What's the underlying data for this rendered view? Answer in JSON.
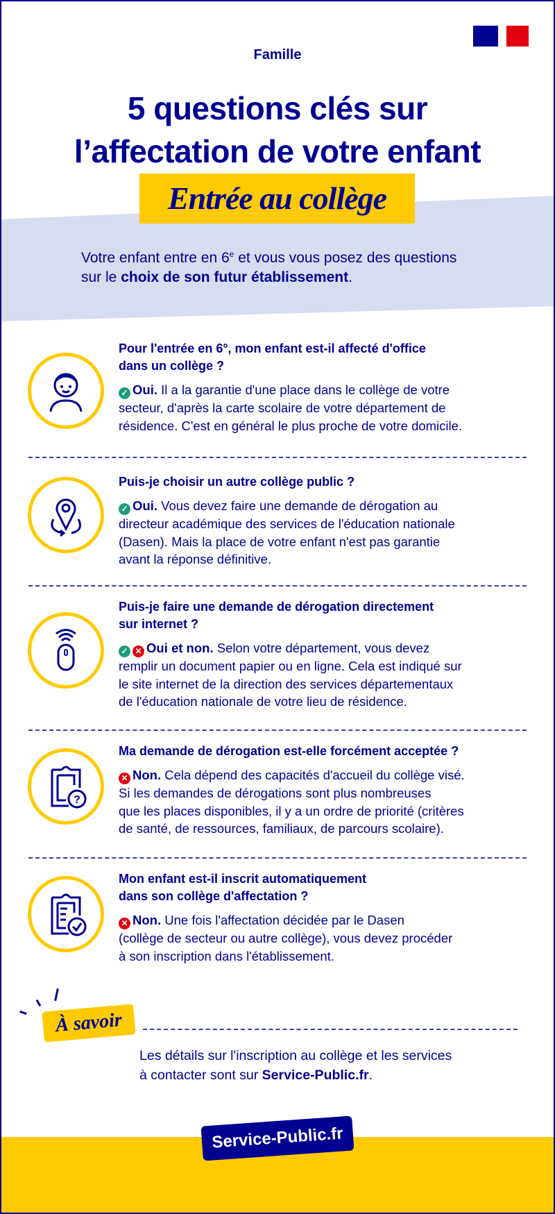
{
  "header": {
    "category": "Famille",
    "title_lines": [
      "5 questions clés sur",
      "l’affectation de votre enfant"
    ],
    "banner": "Entrée au collège",
    "logo": "republique-francaise-flag-logo"
  },
  "intro": {
    "line1_a": "Votre enfant entre en 6",
    "line1_sup": "e",
    "line1_b": " et vous vous posez des questions",
    "line2_a": "sur le ",
    "line2_bold": "choix de son futur établissement",
    "line2_c": "."
  },
  "questions": [
    {
      "icon": "child-avatar-icon",
      "title_lines": [
        "Pour l'entrée en 6°, mon enfant est-il affecté d'office",
        "dans un collège ?"
      ],
      "answer_marks": [
        "check"
      ],
      "answer_label": "Oui.",
      "answer_first": " Il a la garantie d'une place dans le collège de votre",
      "answer_lines": [
        "secteur, d'après la carte scolaire de votre département de",
        "résidence. C'est en général le plus proche de votre domicile."
      ]
    },
    {
      "icon": "location-pin-icon",
      "title_lines": [
        "Puis-je choisir un autre collège public ?"
      ],
      "answer_marks": [
        "check"
      ],
      "answer_label": "Oui.",
      "answer_first": " Vous devez faire une demande de dérogation au",
      "answer_lines": [
        "directeur académique des services de l'éducation nationale",
        "(Dasen). Mais la place de votre enfant n'est pas garantie",
        "avant la réponse définitive."
      ]
    },
    {
      "icon": "wireless-mouse-icon",
      "title_lines": [
        "Puis-je faire une demande de dérogation directement",
        "sur internet ?"
      ],
      "answer_marks": [
        "check",
        "cross"
      ],
      "answer_label": "Oui et non.",
      "answer_first": " Selon votre département, vous devez",
      "answer_lines": [
        "remplir un document papier ou en ligne. Cela est indiqué sur",
        "le site internet de la direction des services départementaux",
        "de l'éducation nationale de votre lieu de résidence."
      ]
    },
    {
      "icon": "clipboard-question-icon",
      "title_lines": [
        "Ma demande de dérogation est-elle forcément acceptée ?"
      ],
      "answer_marks": [
        "cross"
      ],
      "answer_label": "Non.",
      "answer_first": " Cela dépend des capacités d'accueil du collège visé.",
      "answer_lines": [
        "Si les demandes de dérogations sont plus nombreuses",
        "que les places disponibles, il y a un ordre de priorité (critères",
        "de santé, de ressources, familiaux, de parcours scolaire)."
      ]
    },
    {
      "icon": "clipboard-check-icon",
      "title_lines": [
        "Mon enfant est-il inscrit automatiquement",
        "dans son collège d'affectation ?"
      ],
      "answer_marks": [
        "cross"
      ],
      "answer_label": "Non.",
      "answer_first": " Une fois l'affectation décidée par le Dasen",
      "answer_lines": [
        "(collège de secteur ou autre collège), vous devez procéder",
        "à son inscription dans l'établissement."
      ]
    }
  ],
  "a_savoir": {
    "label": "À savoir",
    "line1": "Les détails sur l'inscription au collège et les services",
    "line2_a": "à contacter sont sur ",
    "line2_bold": "Service-Public.fr",
    "line2_c": "."
  },
  "footer": {
    "brand": "Service-Public.fr"
  },
  "colors": {
    "navy": "#000091",
    "yellow": "#ffca00",
    "band": "#d5ddee",
    "check": "#1f9a7a",
    "cross": "#e1000f"
  }
}
